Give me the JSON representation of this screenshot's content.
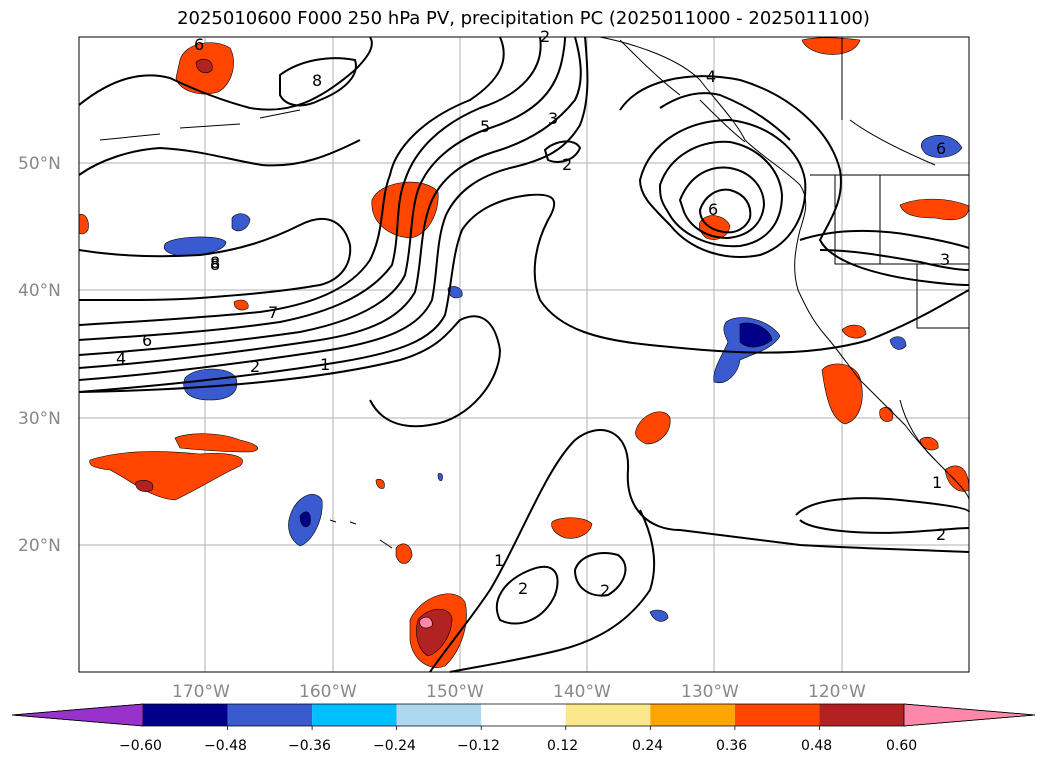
{
  "title": "2025010600 F000 250 hPa PV, precipitation PC (2025011000 - 2025011100)",
  "lat_labels": [
    "50°N",
    "40°N",
    "30°N",
    "20°N"
  ],
  "lon_labels": [
    "170°W",
    "160°W",
    "150°W",
    "140°W",
    "130°W",
    "120°W"
  ],
  "contour_labels": [
    "6",
    "8",
    "8",
    "5",
    "3",
    "2",
    "4",
    "6",
    "8",
    "7",
    "6",
    "4",
    "2",
    "1",
    "6",
    "3",
    "1",
    "2",
    "2",
    "2",
    "1",
    "2"
  ],
  "colorbar": {
    "ticks": [
      "−0.60",
      "−0.48",
      "−0.36",
      "−0.24",
      "−0.12",
      "0.12",
      "0.24",
      "0.36",
      "0.48",
      "0.60"
    ],
    "colors": [
      "#9932cc",
      "#00008b",
      "#3a5bd0",
      "#00bfff",
      "#add8f0",
      "#ffffff",
      "#fce88c",
      "#ffa500",
      "#ff4500",
      "#b22222",
      "#ff88aa"
    ]
  },
  "colors": {
    "neg_light": "#add8f0",
    "neg_mid": "#00bfff",
    "neg_blue": "#3a5bd0",
    "neg_dark": "#00008b",
    "pos_light": "#fce88c",
    "pos_mid": "#ffa500",
    "pos_red": "#ff4500",
    "pos_dark": "#b22222",
    "pos_pink": "#ff88aa",
    "grid": "#b0b0b0"
  }
}
